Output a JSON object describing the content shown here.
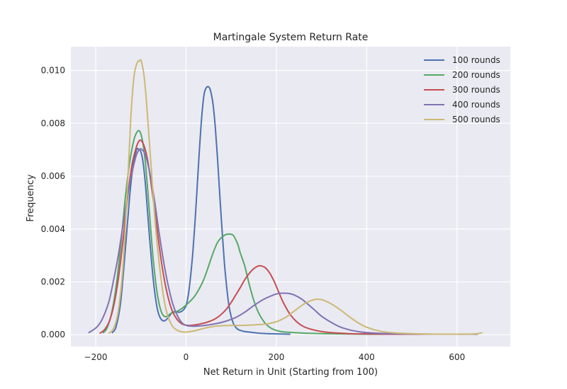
{
  "chart_data": {
    "type": "line",
    "title": "Martingale System Return Rate",
    "xlabel": "Net Return in Unit (Starting from 100)",
    "ylabel": "Frequency",
    "xlim": [
      -255,
      718
    ],
    "ylim": [
      -0.00045,
      0.0109
    ],
    "xticks": [
      -200,
      0,
      200,
      400,
      600
    ],
    "yticks": [
      0.0,
      0.002,
      0.004,
      0.006,
      0.008,
      0.01
    ],
    "xtick_labels": [
      "−200",
      "0",
      "200",
      "400",
      "600"
    ],
    "ytick_labels": [
      "0.000",
      "0.002",
      "0.004",
      "0.006",
      "0.008",
      "0.010"
    ],
    "grid": true,
    "legend_position": "top-right",
    "style": {
      "plot_background": "#eaeaf2",
      "grid_color": "#ffffff"
    },
    "series": [
      {
        "name": "100 rounds",
        "color": "#4c72b0",
        "x": [
          -163,
          -155,
          -145,
          -135,
          -125,
          -118,
          -110,
          -105,
          -100,
          -95,
          -90,
          -85,
          -80,
          -75,
          -70,
          -65,
          -60,
          -55,
          -50,
          -45,
          -40,
          -35,
          -30,
          -25,
          -20,
          -15,
          -10,
          -5,
          0,
          5,
          10,
          15,
          20,
          25,
          30,
          35,
          40,
          45,
          50,
          53,
          56,
          60,
          65,
          70,
          75,
          80,
          85,
          90,
          95,
          100,
          105,
          110,
          115,
          120,
          130,
          140,
          150,
          160,
          180,
          200,
          230
        ],
        "y": [
          8e-05,
          0.0003,
          0.0012,
          0.0031,
          0.0052,
          0.0063,
          0.00698,
          0.00702,
          0.00692,
          0.0065,
          0.0057,
          0.0046,
          0.0035,
          0.0025,
          0.0017,
          0.0011,
          0.00075,
          0.00058,
          0.00052,
          0.00055,
          0.00064,
          0.00075,
          0.00085,
          0.00087,
          0.00086,
          0.00085,
          0.00088,
          0.00095,
          0.0011,
          0.0015,
          0.0022,
          0.0031,
          0.0043,
          0.0057,
          0.0071,
          0.0083,
          0.0091,
          0.00935,
          0.00938,
          0.0093,
          0.0091,
          0.0087,
          0.0078,
          0.0066,
          0.0052,
          0.0039,
          0.0027,
          0.0018,
          0.0011,
          0.00068,
          0.00042,
          0.00028,
          0.0002,
          0.00016,
          0.00012,
          0.0001,
          8e-05,
          6e-05,
          4e-05,
          3e-05,
          2e-05
        ]
      },
      {
        "name": "200 rounds",
        "color": "#55a868",
        "x": [
          -183,
          -175,
          -165,
          -155,
          -145,
          -135,
          -125,
          -115,
          -108,
          -104,
          -100,
          -95,
          -90,
          -85,
          -80,
          -75,
          -70,
          -65,
          -60,
          -55,
          -50,
          -45,
          -40,
          -35,
          -30,
          -25,
          -20,
          -15,
          -10,
          -5,
          0,
          10,
          20,
          30,
          40,
          50,
          60,
          70,
          80,
          90,
          100,
          105,
          110,
          115,
          120,
          130,
          140,
          150,
          160,
          170,
          180,
          190,
          200,
          210,
          220,
          230,
          240,
          260,
          280,
          300,
          350,
          400,
          450,
          500,
          550,
          600,
          638
        ],
        "y": [
          8e-05,
          0.00025,
          0.0008,
          0.0018,
          0.0033,
          0.0051,
          0.0065,
          0.0074,
          0.00768,
          0.00772,
          0.0076,
          0.0072,
          0.0065,
          0.0055,
          0.0044,
          0.0033,
          0.0024,
          0.0017,
          0.0012,
          0.00088,
          0.00072,
          0.00068,
          0.00072,
          0.00079,
          0.00083,
          0.00085,
          0.00088,
          0.00093,
          0.00098,
          0.00105,
          0.00112,
          0.00128,
          0.00148,
          0.00176,
          0.00212,
          0.0026,
          0.0031,
          0.0035,
          0.0037,
          0.0038,
          0.0038,
          0.00375,
          0.0036,
          0.0034,
          0.0031,
          0.0026,
          0.0019,
          0.0013,
          0.00085,
          0.00055,
          0.00035,
          0.00023,
          0.00016,
          0.00012,
          0.0001,
          9e-05,
          8e-05,
          6e-05,
          5e-05,
          4e-05,
          3e-05,
          2e-05,
          2e-05,
          2e-05,
          2e-05,
          2e-05,
          2e-05
        ]
      },
      {
        "name": "300 rounds",
        "color": "#c44e52",
        "x": [
          -190,
          -180,
          -170,
          -160,
          -150,
          -140,
          -130,
          -120,
          -110,
          -103,
          -98,
          -92,
          -85,
          -78,
          -70,
          -62,
          -54,
          -46,
          -38,
          -30,
          -20,
          -10,
          0,
          10,
          20,
          30,
          40,
          50,
          60,
          70,
          80,
          90,
          100,
          110,
          120,
          130,
          140,
          150,
          160,
          167,
          175,
          185,
          195,
          205,
          215,
          230,
          245,
          260,
          280,
          300,
          320,
          340,
          360,
          380,
          400,
          450,
          500,
          550,
          600,
          640
        ],
        "y": [
          6e-05,
          0.0002,
          0.0005,
          0.0011,
          0.0021,
          0.0035,
          0.0051,
          0.0064,
          0.0071,
          0.00735,
          0.00732,
          0.0071,
          0.0066,
          0.0058,
          0.0048,
          0.0037,
          0.0027,
          0.0019,
          0.0013,
          0.00088,
          0.00058,
          0.00042,
          0.00036,
          0.00035,
          0.00037,
          0.0004,
          0.00044,
          0.00049,
          0.00056,
          0.00066,
          0.0008,
          0.00098,
          0.00122,
          0.0015,
          0.00178,
          0.00208,
          0.00232,
          0.0025,
          0.0026,
          0.0026,
          0.00254,
          0.00234,
          0.00202,
          0.00162,
          0.00123,
          0.00078,
          0.00049,
          0.00031,
          0.00019,
          0.00012,
          8e-05,
          6e-05,
          4e-05,
          3e-05,
          3e-05,
          2e-05,
          2e-05,
          2e-05,
          2e-05,
          2e-05
        ]
      },
      {
        "name": "400 rounds",
        "color": "#8172b2",
        "x": [
          -215,
          -200,
          -190,
          -180,
          -170,
          -160,
          -150,
          -140,
          -130,
          -120,
          -110,
          -103,
          -98,
          -90,
          -80,
          -70,
          -60,
          -50,
          -40,
          -30,
          -20,
          -10,
          0,
          15,
          30,
          50,
          70,
          90,
          110,
          130,
          150,
          170,
          190,
          205,
          220,
          230,
          240,
          255,
          270,
          285,
          300,
          320,
          340,
          360,
          380,
          400,
          450,
          500,
          550,
          600,
          645
        ],
        "y": [
          8e-05,
          0.00025,
          0.00045,
          0.0008,
          0.0013,
          0.0021,
          0.003,
          0.0041,
          0.0052,
          0.0061,
          0.0068,
          0.00701,
          0.00701,
          0.0068,
          0.0061,
          0.0051,
          0.0039,
          0.0028,
          0.0019,
          0.0012,
          0.00075,
          0.00047,
          0.00035,
          0.00032,
          0.00033,
          0.00037,
          0.00043,
          0.00052,
          0.00065,
          0.00085,
          0.0011,
          0.00132,
          0.00148,
          0.00156,
          0.00157,
          0.00155,
          0.0015,
          0.00136,
          0.00115,
          0.00093,
          0.0007,
          0.00048,
          0.0003,
          0.00019,
          0.00012,
          8e-05,
          4e-05,
          3e-05,
          2e-05,
          2e-05,
          2e-05
        ]
      },
      {
        "name": "500 rounds",
        "color": "#ccb974",
        "x": [
          -170,
          -160,
          -150,
          -140,
          -130,
          -122,
          -115,
          -108,
          -104,
          -100,
          -97,
          -93,
          -88,
          -82,
          -75,
          -68,
          -60,
          -52,
          -45,
          -38,
          -30,
          -20,
          -10,
          0,
          20,
          40,
          60,
          80,
          100,
          120,
          140,
          160,
          180,
          200,
          220,
          240,
          260,
          275,
          285,
          295,
          305,
          320,
          340,
          360,
          380,
          400,
          430,
          460,
          500,
          550,
          600,
          640,
          655
        ],
        "y": [
          6e-05,
          0.00025,
          0.0009,
          0.0025,
          0.0055,
          0.0083,
          0.0098,
          0.0103,
          0.01035,
          0.0104,
          0.0102,
          0.0098,
          0.0089,
          0.0075,
          0.0058,
          0.0042,
          0.0028,
          0.0017,
          0.001,
          0.0006,
          0.00032,
          0.00017,
          0.00011,
          0.0001,
          0.00015,
          0.00024,
          0.00031,
          0.00034,
          0.00035,
          0.00035,
          0.00036,
          0.00038,
          0.00041,
          0.00049,
          0.00065,
          0.0009,
          0.00115,
          0.00128,
          0.00133,
          0.00134,
          0.0013,
          0.00118,
          0.00096,
          0.0007,
          0.00046,
          0.00028,
          0.00013,
          7e-05,
          4e-05,
          2e-05,
          2e-05,
          3e-05,
          7e-05
        ]
      }
    ]
  }
}
